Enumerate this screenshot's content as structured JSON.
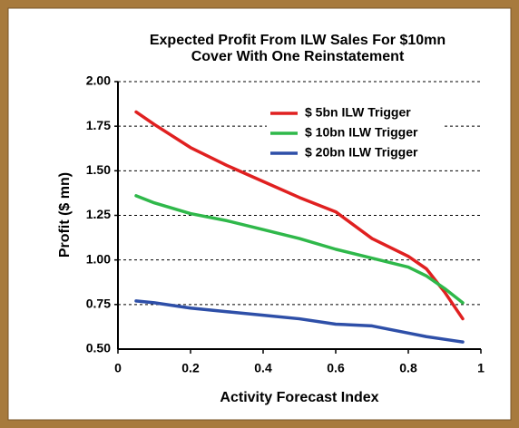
{
  "chart_data": {
    "type": "line",
    "title": [
      "Expected Profit From ILW Sales For $10mn",
      "Cover With One Reinstatement"
    ],
    "x_label": "Activity Forecast Index",
    "y_label": "Profit ($ mn)",
    "x": [
      0.05,
      0.1,
      0.2,
      0.3,
      0.4,
      0.5,
      0.6,
      0.7,
      0.8,
      0.85,
      0.9,
      0.95
    ],
    "series": [
      {
        "name": "$ 5bn ILW Trigger",
        "color": "#e02020",
        "values": [
          1.83,
          1.76,
          1.63,
          1.53,
          1.44,
          1.35,
          1.27,
          1.12,
          1.02,
          0.95,
          0.82,
          0.67
        ]
      },
      {
        "name": "$ 10bn ILW Trigger",
        "color": "#2fb84a",
        "values": [
          1.36,
          1.32,
          1.26,
          1.22,
          1.17,
          1.12,
          1.06,
          1.01,
          0.96,
          0.91,
          0.84,
          0.76
        ]
      },
      {
        "name": "$ 20bn ILW Trigger",
        "color": "#2e4fa8",
        "values": [
          0.77,
          0.76,
          0.73,
          0.71,
          0.69,
          0.67,
          0.64,
          0.63,
          0.59,
          0.57,
          0.555,
          0.54
        ]
      }
    ],
    "xlim": [
      0,
      1
    ],
    "xticks": [
      0,
      0.2,
      0.4,
      0.6,
      0.8,
      1
    ],
    "ylim": [
      0.5,
      2
    ],
    "yticks": [
      {
        "value": 0.5,
        "label": "0.50"
      },
      {
        "value": 0.75,
        "label": "0.75"
      },
      {
        "value": 1,
        "label": "1.00"
      },
      {
        "value": 1.25,
        "label": "1.25"
      },
      {
        "value": 1.5,
        "label": "1.50"
      },
      {
        "value": 1.75,
        "label": "1.75"
      },
      {
        "value": 2,
        "label": "2.00"
      }
    ],
    "grid": true,
    "legend": "upper right"
  }
}
